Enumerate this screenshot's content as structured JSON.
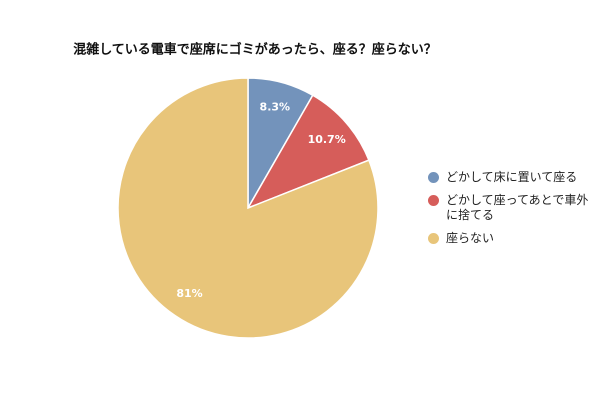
{
  "chart_data": {
    "type": "pie",
    "title": "混雑している電車で座席にゴミがあったら、座る？座らない？",
    "categories": [
      "どかして床に置いて座る",
      "どかして座ってあとで車外に捨てる",
      "座らない"
    ],
    "values": [
      8.3,
      10.7,
      81
    ],
    "value_labels": [
      "8.3%",
      "10.7%",
      "81%"
    ],
    "colors": [
      "#7393bb",
      "#d65d5a",
      "#e8c57a"
    ]
  }
}
